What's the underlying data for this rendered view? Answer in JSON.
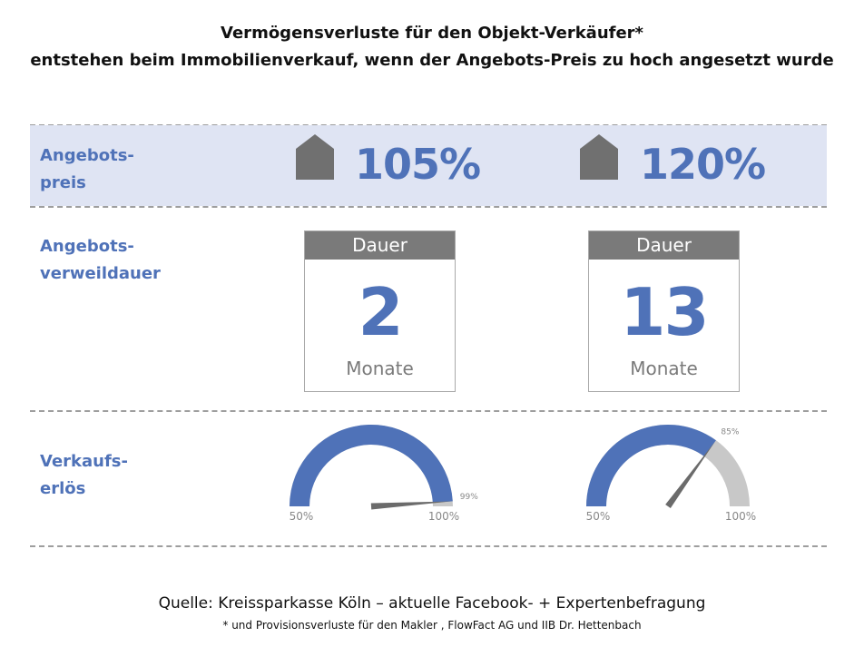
{
  "title": {
    "line1": "Vermögensverluste für den Objekt-Verkäufer*",
    "line2": "entstehen  beim Immobilienverkauf,  wenn der Angebots-Preis zu hoch angesetzt wurde"
  },
  "rows": {
    "price": {
      "line1": "Angebots-",
      "line2": "preis"
    },
    "duration": {
      "line1": "Angebots-",
      "line2": "verweildauer"
    },
    "proceeds": {
      "line1": "Verkaufs-",
      "line2": "erlös"
    }
  },
  "scenarios": [
    {
      "price": "105%",
      "duration_label": "Dauer",
      "duration_value": "2",
      "duration_unit": "Monate",
      "gauge": {
        "value_pct": 99,
        "value_label": "99%",
        "min_label": "50%",
        "max_label": "100%",
        "min": 50,
        "max": 100
      }
    },
    {
      "price": "120%",
      "duration_label": "Dauer",
      "duration_value": "13",
      "duration_unit": "Monate",
      "gauge": {
        "value_pct": 85,
        "value_label": "85%",
        "min_label": "50%",
        "max_label": "100%",
        "min": 50,
        "max": 100
      }
    }
  ],
  "source": "Quelle: Kreissparkasse Köln – aktuelle Facebook- + Expertenbefragung",
  "footnote": "* und Provisionsverluste für den Makler , FlowFact AG und IIB Dr. Hettenbach",
  "colors": {
    "accent": "#4f72b8",
    "band": "#dfe4f3",
    "gauge_rest": "#c8c8c8",
    "needle": "#6b6b6b",
    "card_head": "#7a7a7a"
  }
}
